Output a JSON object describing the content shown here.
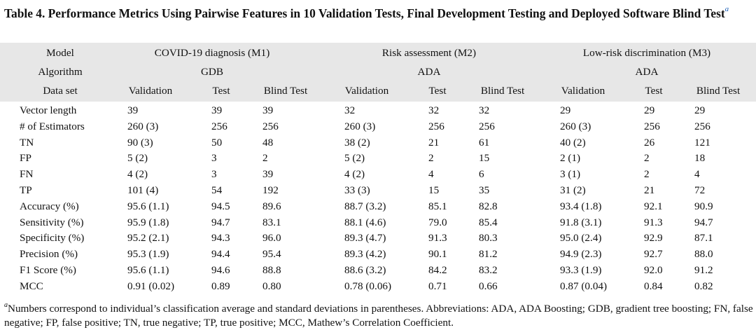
{
  "table": {
    "number": "Table 4.",
    "title": "Performance Metrics Using Pairwise Features in 10 Validation Tests, Final Development Testing and Deployed Software Blind Test",
    "title_footnote_marker": "a",
    "header_rows": [
      {
        "label": "Model",
        "groups": [
          "COVID-19 diagnosis (M1)",
          "Risk assessment (M2)",
          "Low-risk discrimination (M3)"
        ]
      },
      {
        "label": "Algorithm",
        "groups": [
          "GDB",
          "ADA",
          "ADA"
        ]
      },
      {
        "label": "Data set",
        "columns": [
          "Validation",
          "Test",
          "Blind Test",
          "Validation",
          "Test",
          "Blind Test",
          "Validation",
          "Test",
          "Blind Test"
        ]
      }
    ],
    "rows": [
      {
        "label": "Vector length",
        "values": [
          "39",
          "39",
          "39",
          "32",
          "32",
          "32",
          "29",
          "29",
          "29"
        ]
      },
      {
        "label": "# of Estimators",
        "values": [
          "260 (3)",
          "256",
          "256",
          "260 (3)",
          "256",
          "256",
          "260 (3)",
          "256",
          "256"
        ]
      },
      {
        "label": "TN",
        "values": [
          "90 (3)",
          "50",
          "48",
          "38 (2)",
          "21",
          "61",
          "40 (2)",
          "26",
          "121"
        ]
      },
      {
        "label": "FP",
        "values": [
          "5 (2)",
          "3",
          "2",
          "5 (2)",
          "2",
          "15",
          "2 (1)",
          "2",
          "18"
        ]
      },
      {
        "label": "FN",
        "values": [
          "4 (2)",
          "3",
          "39",
          "4 (2)",
          "4",
          "6",
          "3 (1)",
          "2",
          "4"
        ]
      },
      {
        "label": "TP",
        "values": [
          "101 (4)",
          "54",
          "192",
          "33 (3)",
          "15",
          "35",
          "31 (2)",
          "21",
          "72"
        ]
      },
      {
        "label": "Accuracy (%)",
        "values": [
          "95.6 (1.1)",
          "94.5",
          "89.6",
          "88.7 (3.2)",
          "85.1",
          "82.8",
          "93.4 (1.8)",
          "92.1",
          "90.9"
        ]
      },
      {
        "label": "Sensitivity (%)",
        "values": [
          "95.9 (1.8)",
          "94.7",
          "83.1",
          "88.1 (4.6)",
          "79.0",
          "85.4",
          "91.8 (3.1)",
          "91.3",
          "94.7"
        ]
      },
      {
        "label": "Specificity (%)",
        "values": [
          "95.2 (2.1)",
          "94.3",
          "96.0",
          "89.3 (4.7)",
          "91.3",
          "80.3",
          "95.0 (2.4)",
          "92.9",
          "87.1"
        ]
      },
      {
        "label": "Precision (%)",
        "values": [
          "95.3 (1.9)",
          "94.4",
          "95.4",
          "89.3 (4.2)",
          "90.1",
          "81.2",
          "94.9 (2.3)",
          "92.7",
          "88.0"
        ]
      },
      {
        "label": "F1 Score (%)",
        "values": [
          "95.6 (1.1)",
          "94.6",
          "88.8",
          "88.6 (3.2)",
          "84.2",
          "83.2",
          "93.3 (1.9)",
          "92.0",
          "91.2"
        ]
      },
      {
        "label": "MCC",
        "values": [
          "0.91 (0.02)",
          "0.89",
          "0.80",
          "0.78 (0.06)",
          "0.71",
          "0.66",
          "0.87 (0.04)",
          "0.84",
          "0.82"
        ]
      }
    ],
    "footnote_marker": "a",
    "footnote": "Numbers correspond to individual’s classification average and standard deviations in parentheses. Abbreviations: ADA, ADA Boosting; GDB, gradient tree boosting; FN, false negative; FP, false positive; TN, true negative; TP, true positive; MCC, Mathew’s Correlation Coefficient.",
    "accent_color": "#1b5fb6",
    "header_background": "#e7e7e7"
  }
}
